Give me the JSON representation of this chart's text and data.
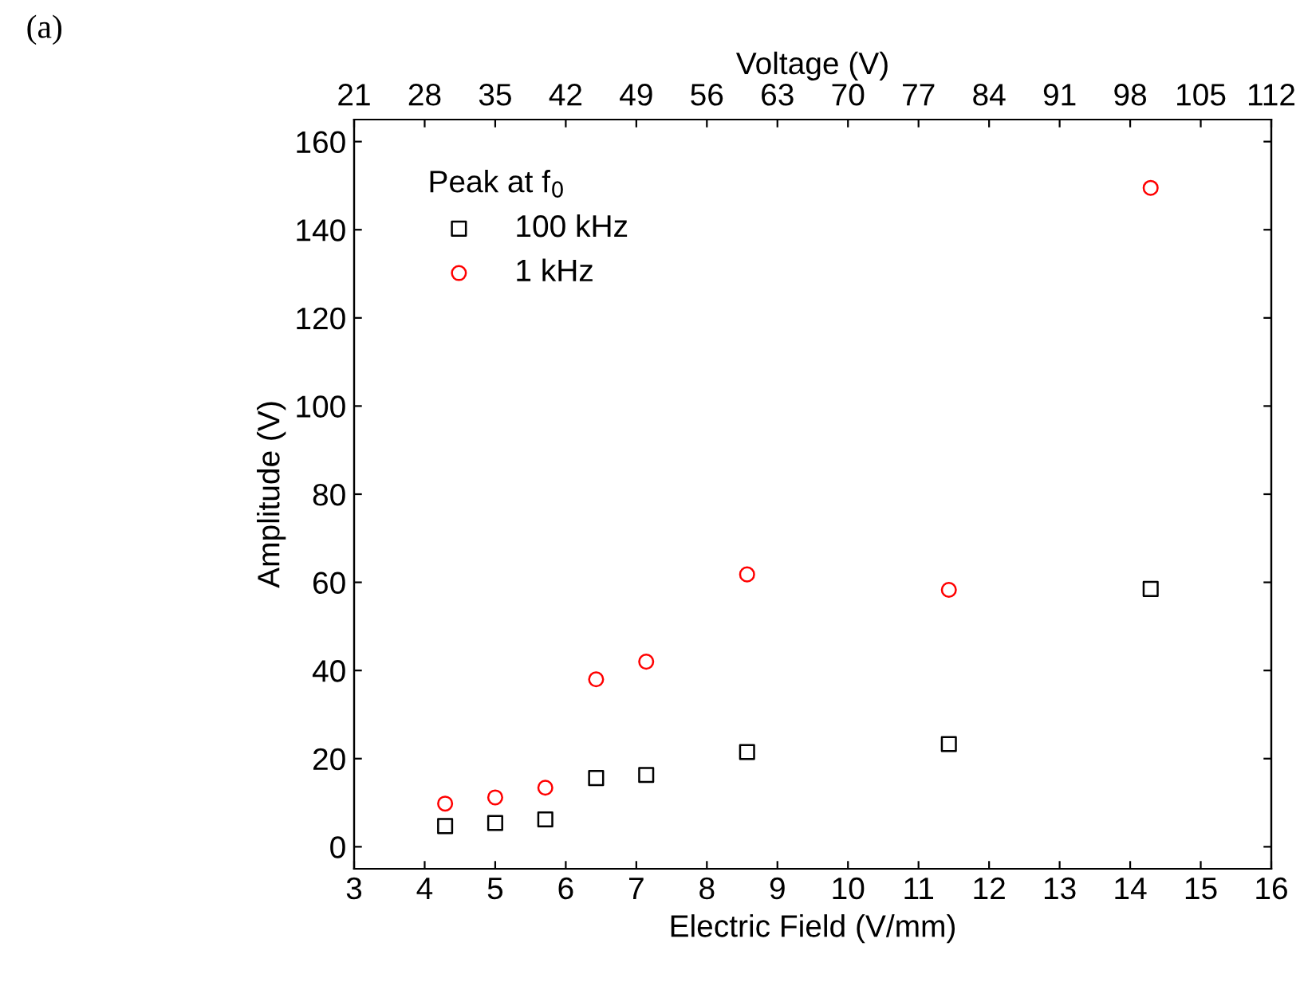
{
  "chart_data": {
    "type": "scatter",
    "xlabel": "Electric Field (V/mm)",
    "ylabel": "Amplitude (V)",
    "x2label": "Voltage (V)",
    "legend_title": "Peak at f$_{0}$",
    "annotations": [
      "(a)"
    ],
    "x": [
      4.29,
      5.0,
      5.71,
      6.43,
      7.14,
      8.57,
      11.43,
      14.29
    ],
    "series": [
      {
        "name": "100 kHz",
        "color": "#000000",
        "marker": "square",
        "values": [
          4.7,
          5.4,
          6.2,
          15.6,
          16.3,
          21.5,
          23.3,
          58.5
        ]
      },
      {
        "name": "1 kHz",
        "color": "#ff0000",
        "marker": "circle",
        "values": [
          9.8,
          11.2,
          13.4,
          38,
          42,
          61.8,
          58.3,
          149.5
        ]
      }
    ],
    "xlim": [
      3,
      16
    ],
    "xticks": [
      3,
      4,
      5,
      6,
      7,
      8,
      9,
      10,
      11,
      12,
      13,
      14,
      15,
      16
    ],
    "x2lim": [
      21,
      112
    ],
    "x2ticks": [
      21,
      28,
      35,
      42,
      49,
      56,
      63,
      70,
      77,
      84,
      91,
      98,
      105,
      112
    ],
    "ylim": [
      -5,
      165
    ],
    "yticks": [
      0,
      20,
      40,
      60,
      80,
      100,
      120,
      140,
      160
    ],
    "grid": false,
    "legend": "top left"
  }
}
